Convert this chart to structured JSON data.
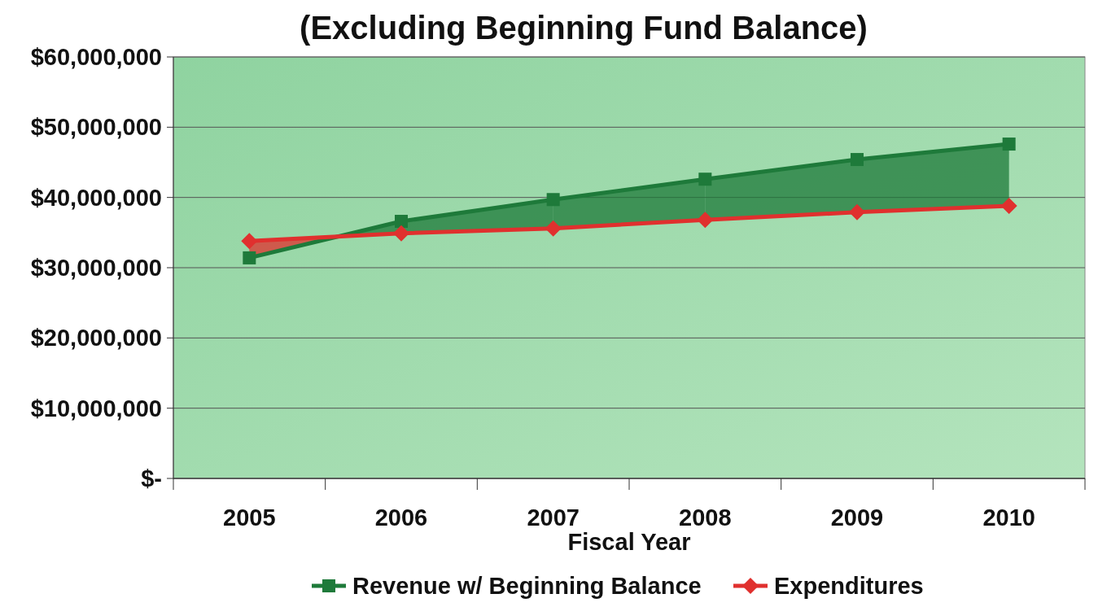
{
  "chart_data": {
    "type": "line",
    "title": "(Excluding Beginning Fund Balance)",
    "xlabel": "Fiscal Year",
    "categories": [
      "2005",
      "2006",
      "2007",
      "2008",
      "2009",
      "2010"
    ],
    "series": [
      {
        "name": "Revenue w/ Beginning Balance",
        "color": "#1e7a3a",
        "marker": "square",
        "values": [
          31400000,
          36600000,
          39700000,
          42600000,
          45400000,
          47600000
        ]
      },
      {
        "name": "Expenditures",
        "color": "#e0302e",
        "marker": "diamond",
        "values": [
          33800000,
          34900000,
          35600000,
          36800000,
          37900000,
          38800000
        ]
      }
    ],
    "ylim": [
      0,
      60000000
    ],
    "yticks": [
      {
        "value": 0,
        "label": "$-"
      },
      {
        "value": 10000000,
        "label": "$10,000,000"
      },
      {
        "value": 20000000,
        "label": "$20,000,000"
      },
      {
        "value": 30000000,
        "label": "$30,000,000"
      },
      {
        "value": 40000000,
        "label": "$40,000,000"
      },
      {
        "value": 50000000,
        "label": "$50,000,000"
      },
      {
        "value": 60000000,
        "label": "$60,000,000"
      }
    ],
    "grid": "y",
    "legend": "bottom"
  }
}
